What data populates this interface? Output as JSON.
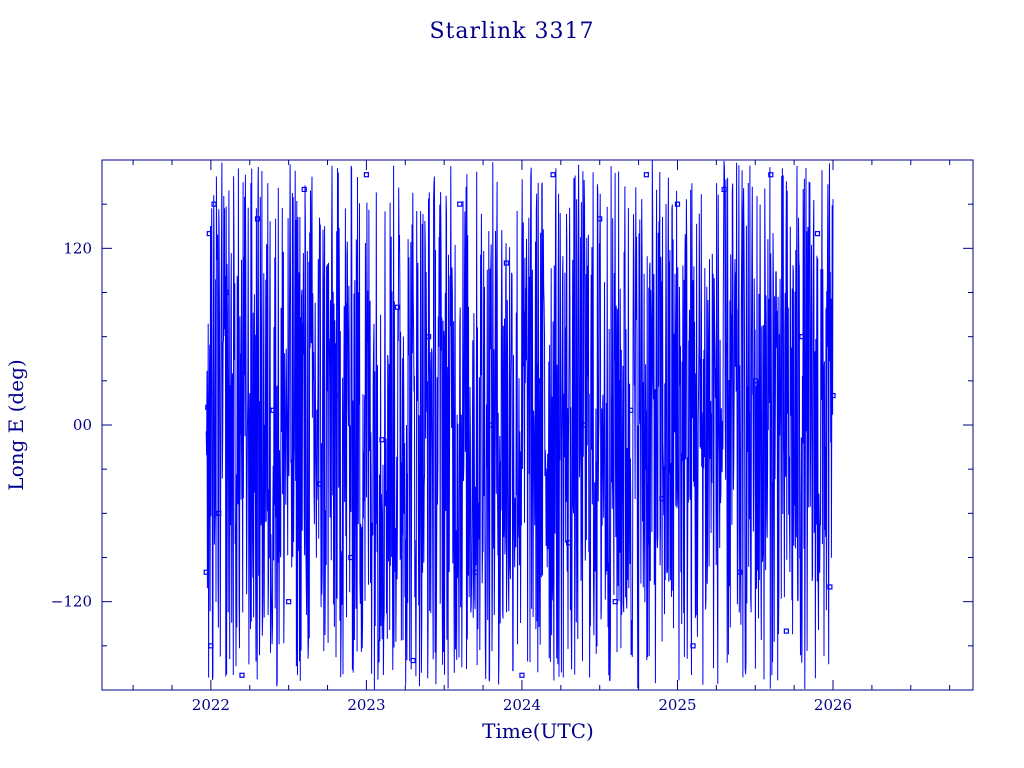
{
  "chart_data": {
    "type": "scatter",
    "title": "Starlink 3317",
    "xlabel": "Time(UTC)",
    "ylabel": "Long E (deg)",
    "xlim": [
      2021.3,
      2026.9
    ],
    "ylim": [
      -180,
      180
    ],
    "x_ticks": [
      2022,
      2023,
      2024,
      2025,
      2026
    ],
    "x_tick_labels": [
      "2022",
      "2023",
      "2024",
      "2025",
      "2026"
    ],
    "y_ticks": [
      -120,
      0,
      120
    ],
    "y_tick_labels": [
      "−120",
      "00",
      "120"
    ],
    "series": [
      {
        "color": "#0000ff",
        "connected": true,
        "x_start": 2021.97,
        "x_end": 2026.0,
        "description_of_values": "sampled longitude wraps between -180 and 180 deg many times over the period",
        "x": [
          2021.97,
          2021.98,
          2021.99,
          2022.0,
          2022.02,
          2022.05,
          2022.1,
          2022.2,
          2022.3,
          2022.4,
          2022.5,
          2022.6,
          2022.7,
          2022.8,
          2022.9,
          2023.0,
          2023.1,
          2023.2,
          2023.3,
          2023.4,
          2023.5,
          2023.6,
          2023.7,
          2023.8,
          2023.9,
          2024.0,
          2024.1,
          2024.2,
          2024.3,
          2024.4,
          2024.5,
          2024.6,
          2024.7,
          2024.8,
          2024.9,
          2025.0,
          2025.1,
          2025.2,
          2025.3,
          2025.4,
          2025.5,
          2025.6,
          2025.7,
          2025.8,
          2025.9,
          2025.98,
          2026.0
        ],
        "y": [
          -100,
          12,
          130,
          -150,
          150,
          -60,
          90,
          -170,
          140,
          10,
          -120,
          160,
          -40,
          20,
          -90,
          170,
          -10,
          80,
          -160,
          60,
          -30,
          150,
          -100,
          0,
          110,
          -170,
          30,
          170,
          -80,
          0,
          140,
          -120,
          10,
          170,
          -50,
          150,
          -150,
          0,
          160,
          -100,
          30,
          170,
          -140,
          60,
          130,
          -110,
          20
        ]
      }
    ]
  }
}
